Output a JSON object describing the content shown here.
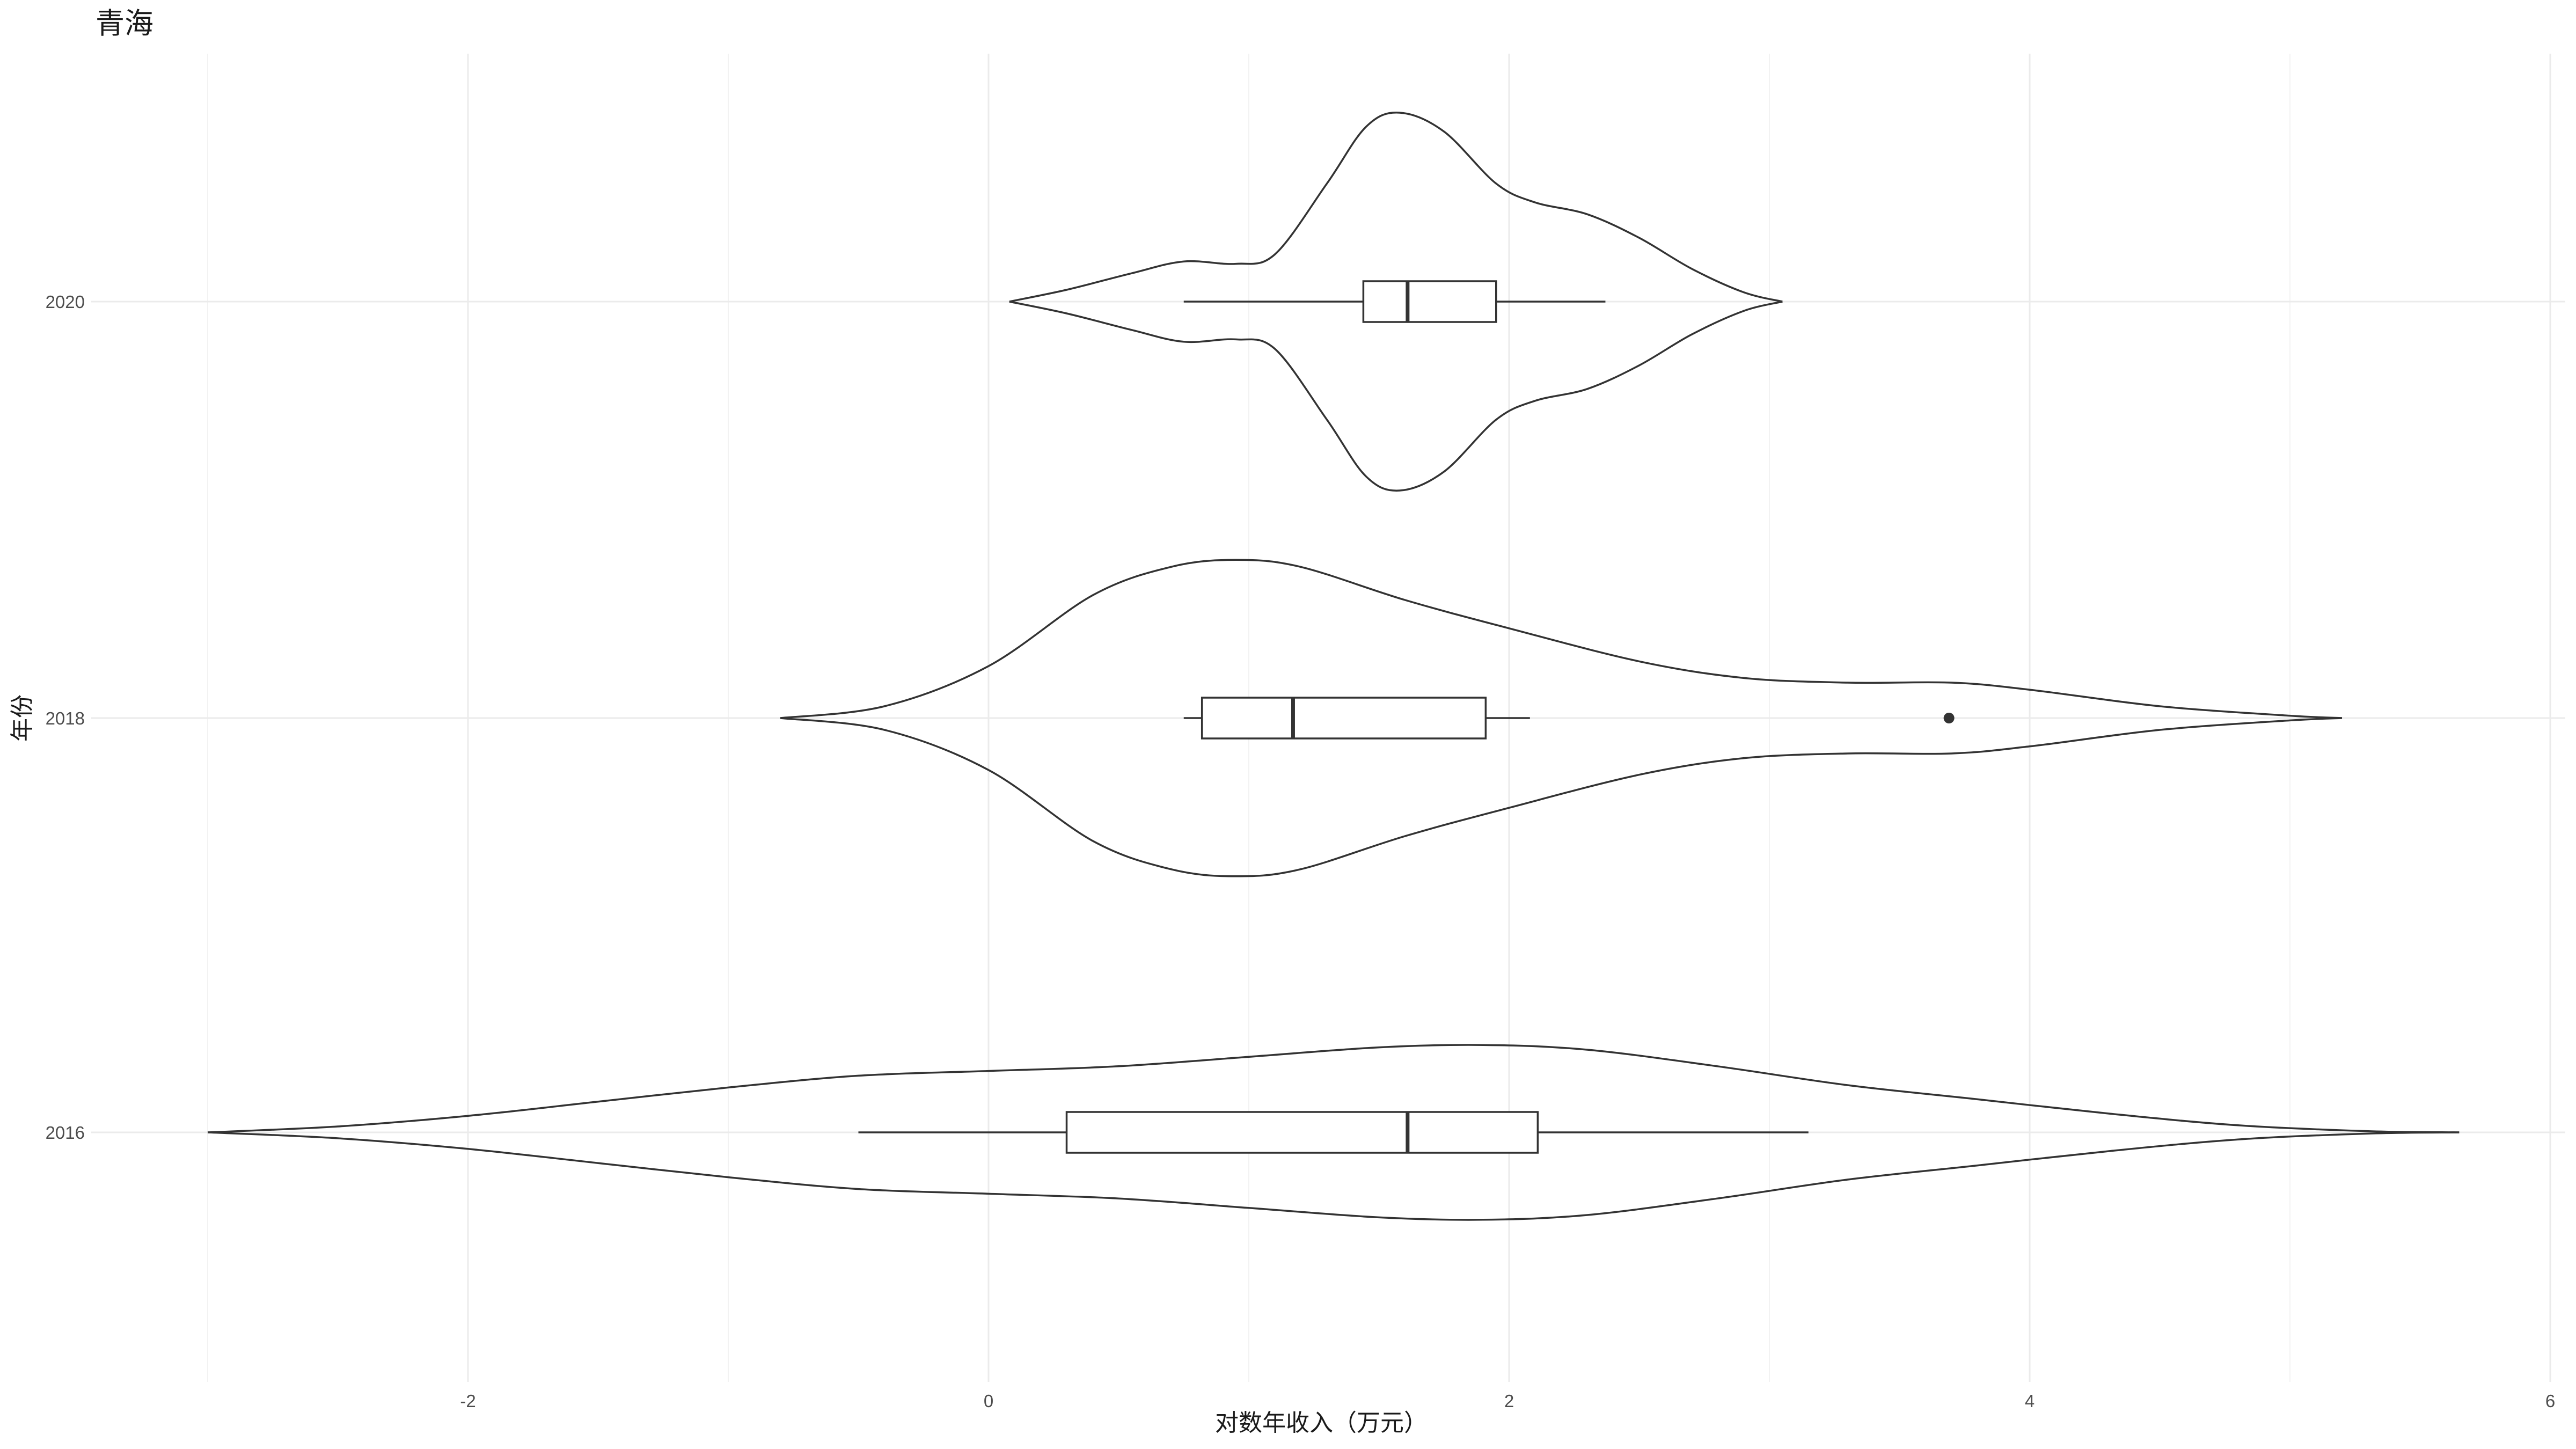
{
  "chart_data": {
    "type": "violin",
    "title": "青海",
    "xlabel": "对数年收入（万元）",
    "ylabel": "年份",
    "xlim": [
      -3.0,
      6.0
    ],
    "x_ticks": [
      -2,
      0,
      2,
      4,
      6
    ],
    "grid": true,
    "categories": [
      "2016",
      "2018",
      "2020"
    ],
    "series": [
      {
        "category": "2016",
        "box": {
          "whisker_low": -0.5,
          "q1": 0.3,
          "median": 1.61,
          "q3": 2.11,
          "whisker_high": 3.15
        },
        "outliers": [],
        "density": [
          [
            -3.0,
            0.0
          ],
          [
            -2.5,
            0.025
          ],
          [
            -2.0,
            0.07
          ],
          [
            -1.5,
            0.13
          ],
          [
            -1.0,
            0.19
          ],
          [
            -0.5,
            0.24
          ],
          [
            0.0,
            0.26
          ],
          [
            0.5,
            0.28
          ],
          [
            1.0,
            0.32
          ],
          [
            1.5,
            0.36
          ],
          [
            1.9,
            0.37
          ],
          [
            2.3,
            0.35
          ],
          [
            2.8,
            0.28
          ],
          [
            3.3,
            0.2
          ],
          [
            3.8,
            0.14
          ],
          [
            4.3,
            0.08
          ],
          [
            4.8,
            0.03
          ],
          [
            5.3,
            0.005
          ],
          [
            5.65,
            0.0
          ]
        ]
      },
      {
        "category": "2018",
        "box": {
          "whisker_low": 0.75,
          "q1": 0.82,
          "median": 1.17,
          "q3": 1.91,
          "whisker_high": 2.08
        },
        "outliers": [
          3.69
        ],
        "density": [
          [
            -0.8,
            0.0
          ],
          [
            -0.4,
            0.05
          ],
          [
            0.0,
            0.22
          ],
          [
            0.4,
            0.52
          ],
          [
            0.7,
            0.64
          ],
          [
            0.95,
            0.67
          ],
          [
            1.2,
            0.64
          ],
          [
            1.6,
            0.5
          ],
          [
            2.0,
            0.38
          ],
          [
            2.5,
            0.24
          ],
          [
            2.9,
            0.17
          ],
          [
            3.3,
            0.15
          ],
          [
            3.7,
            0.15
          ],
          [
            4.0,
            0.12
          ],
          [
            4.5,
            0.05
          ],
          [
            5.0,
            0.01
          ],
          [
            5.2,
            0.0
          ]
        ]
      },
      {
        "category": "2020",
        "box": {
          "whisker_low": 0.75,
          "q1": 1.44,
          "median": 1.61,
          "q3": 1.95,
          "whisker_high": 2.37
        },
        "outliers": [],
        "density": [
          [
            0.08,
            0.0
          ],
          [
            0.3,
            0.05
          ],
          [
            0.55,
            0.12
          ],
          [
            0.75,
            0.17
          ],
          [
            0.95,
            0.16
          ],
          [
            1.1,
            0.2
          ],
          [
            1.3,
            0.5
          ],
          [
            1.45,
            0.74
          ],
          [
            1.58,
            0.8
          ],
          [
            1.75,
            0.72
          ],
          [
            1.95,
            0.5
          ],
          [
            2.1,
            0.42
          ],
          [
            2.3,
            0.37
          ],
          [
            2.5,
            0.27
          ],
          [
            2.7,
            0.14
          ],
          [
            2.9,
            0.04
          ],
          [
            3.05,
            0.0
          ]
        ]
      }
    ]
  }
}
